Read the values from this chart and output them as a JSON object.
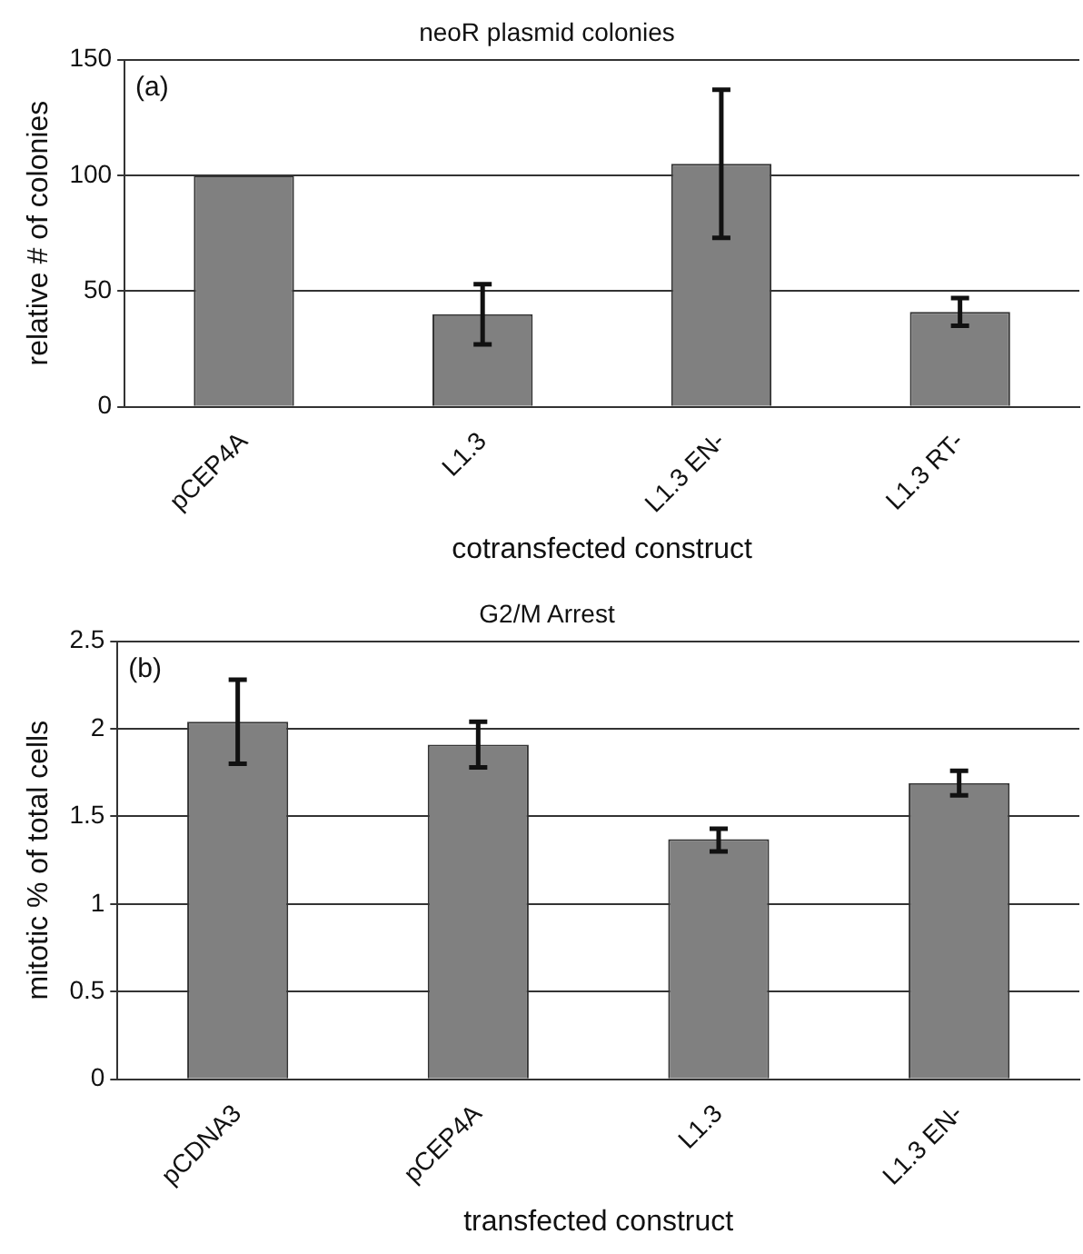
{
  "chart_data": [
    {
      "type": "bar",
      "title": "neoR plasmid colonies",
      "xlabel": "cotransfected construct",
      "ylabel": "relative # of colonies",
      "categories": [
        "pCEP4A",
        "L1.3",
        "L1.3 EN-",
        "L1.3 RT-"
      ],
      "values": [
        100,
        40,
        105,
        41
      ],
      "errors": [
        null,
        [
          27,
          53
        ],
        [
          73,
          137
        ],
        [
          35,
          47
        ]
      ],
      "color": "#808080",
      "ylim": [
        0,
        150
      ],
      "yticks": [
        0,
        50,
        100,
        150
      ],
      "grid": "y",
      "annotations": [
        "(a)"
      ]
    },
    {
      "type": "bar",
      "title": "G2/M Arrest",
      "xlabel": "transfected construct",
      "ylabel": "mitotic % of total cells",
      "categories": [
        "pCDNA3",
        "pCEP4A",
        "L1.3",
        "L1.3 EN-"
      ],
      "values": [
        2.04,
        1.91,
        1.37,
        1.69
      ],
      "errors": [
        [
          1.8,
          2.28
        ],
        [
          1.78,
          2.04
        ],
        [
          1.3,
          1.43
        ],
        [
          1.62,
          1.76
        ]
      ],
      "color": "#808080",
      "ylim": [
        0,
        2.5
      ],
      "yticks": [
        0,
        0.5,
        1,
        1.5,
        2,
        2.5
      ],
      "grid": "y",
      "annotations": [
        "(b)"
      ]
    }
  ]
}
